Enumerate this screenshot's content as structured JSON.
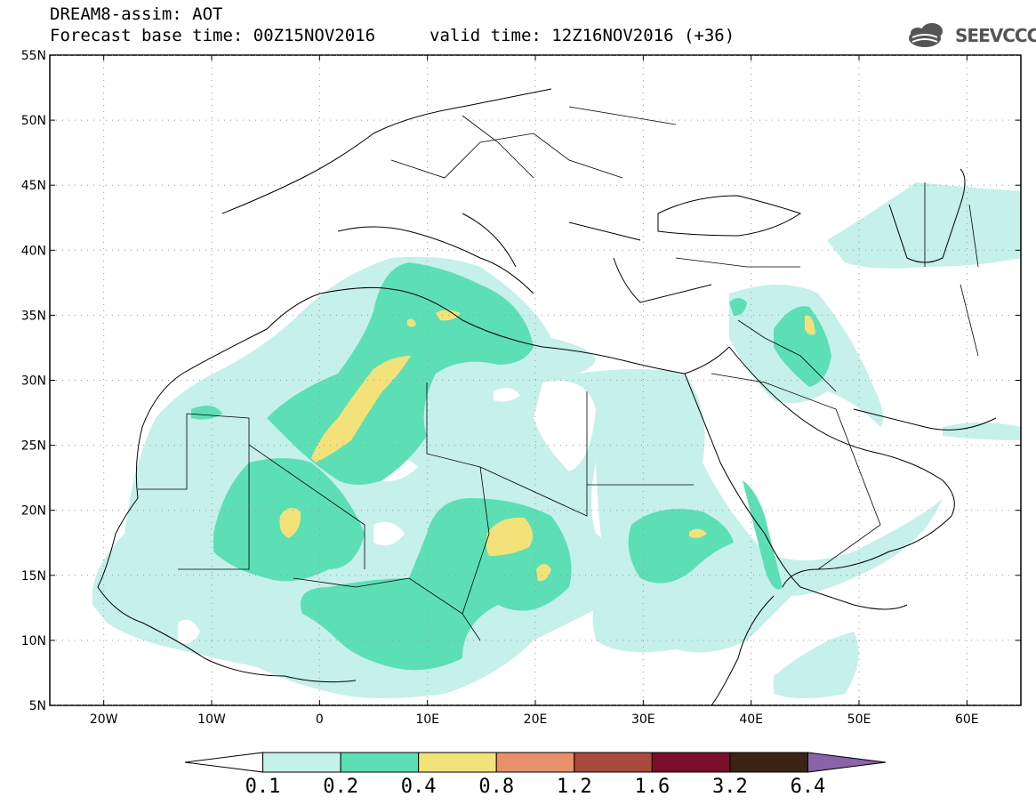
{
  "header": {
    "line1": "DREAM8-assim: AOT",
    "base_time": "Forecast base time: 00Z15NOV2016",
    "valid_time": "valid time: 12Z16NOV2016 (+36)",
    "logo_text": "SEEVCCC"
  },
  "map": {
    "lon_range": [
      -25,
      65
    ],
    "lat_range": [
      5,
      55
    ],
    "lat_ticks": [
      "55N",
      "50N",
      "45N",
      "40N",
      "35N",
      "30N",
      "25N",
      "20N",
      "15N",
      "10N",
      "5N"
    ],
    "lon_ticks": [
      "20W",
      "10W",
      "0",
      "10E",
      "20E",
      "30E",
      "40E",
      "50E",
      "60E"
    ]
  },
  "colorbar": {
    "labels": [
      "0.1",
      "0.2",
      "0.4",
      "0.8",
      "1.2",
      "1.6",
      "3.2",
      "6.4"
    ],
    "colors": [
      "#ffffff",
      "#c6f0ea",
      "#5ddfb6",
      "#f3e27a",
      "#e8906a",
      "#a84b3c",
      "#7a0f2b",
      "#3b2414",
      "#8a63a8"
    ]
  }
}
